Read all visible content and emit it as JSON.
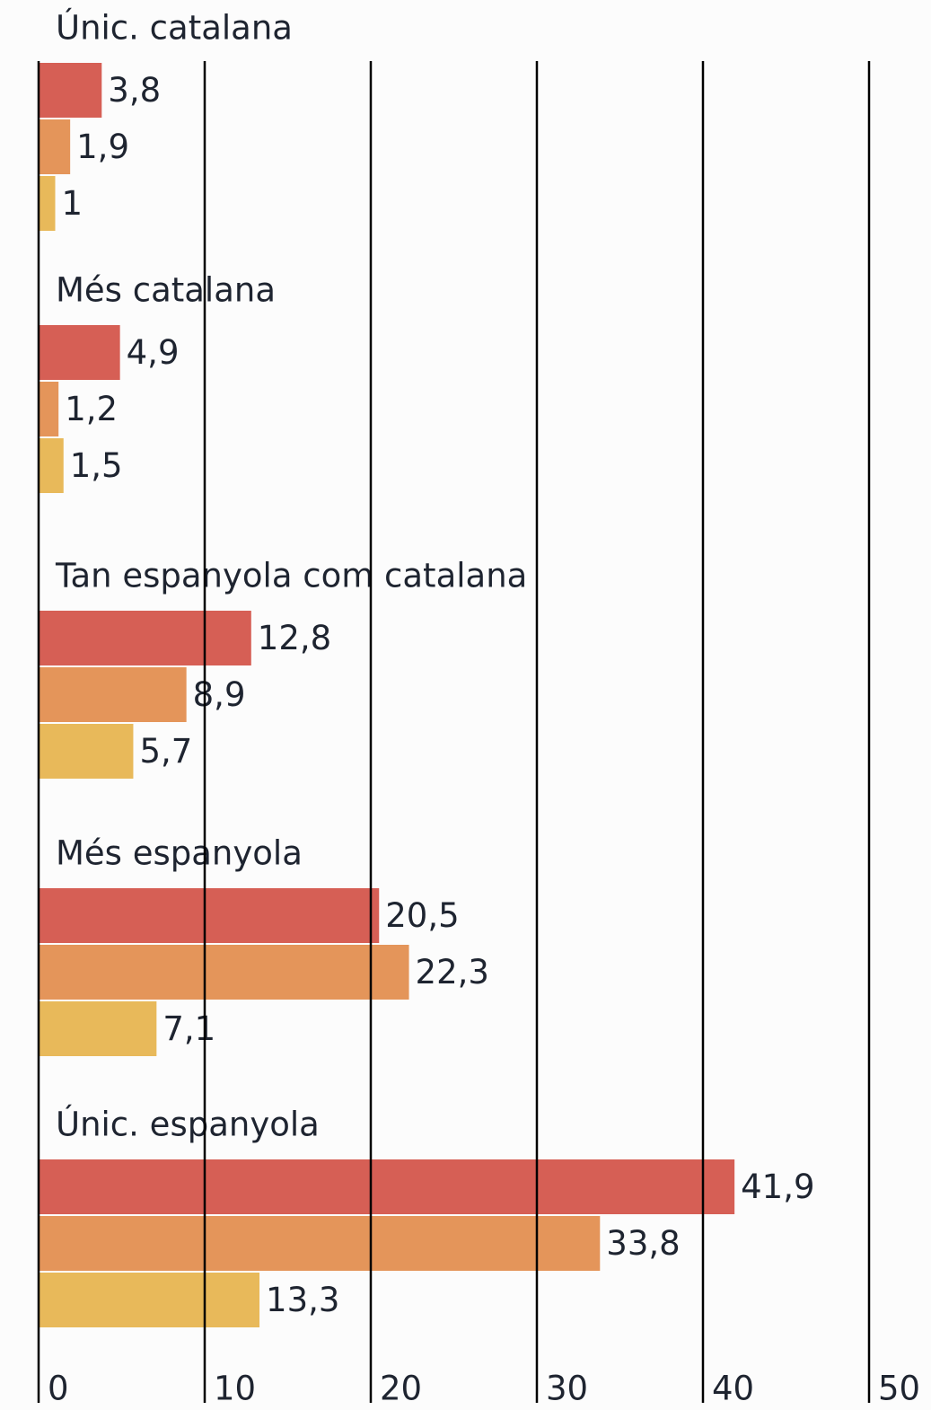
{
  "chart_data": {
    "type": "bar",
    "orientation": "horizontal",
    "categories": [
      "Únic. catalana",
      "Més catalana",
      "Tan espanyola com catalana",
      "Més espanyola",
      "Únic. espanyola"
    ],
    "series": [
      {
        "color": "#d65f55",
        "values": [
          3.8,
          4.9,
          12.8,
          20.5,
          41.9
        ],
        "value_labels": [
          "3,8",
          "4,9",
          "12,8",
          "20,5",
          "41,9"
        ]
      },
      {
        "color": "#e4955a",
        "values": [
          1.9,
          1.2,
          8.9,
          22.3,
          33.8
        ],
        "value_labels": [
          "1,9",
          "1,2",
          "8,9",
          "22,3",
          "33,8"
        ]
      },
      {
        "color": "#e8b95a",
        "values": [
          1,
          1.5,
          5.7,
          7.1,
          13.3
        ],
        "value_labels": [
          "1",
          "1,5",
          "5,7",
          "7,1",
          "13,3"
        ]
      }
    ],
    "xlim": [
      0,
      50
    ],
    "xticks": [
      0,
      10,
      20,
      30,
      40,
      50
    ],
    "grid": true
  }
}
